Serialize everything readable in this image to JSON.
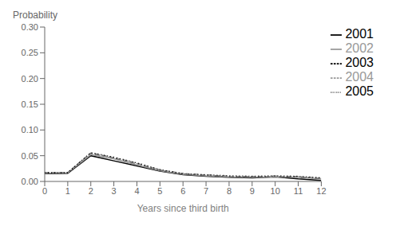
{
  "chart_data": {
    "type": "line",
    "xlabel": "Years since third birth",
    "ylabel": "Probability",
    "x": [
      0,
      1,
      2,
      3,
      4,
      5,
      6,
      7,
      8,
      9,
      10,
      11,
      12
    ],
    "series": [
      {
        "name": "2001",
        "color": "#000000",
        "line_style": "solid",
        "values": [
          0.015,
          0.016,
          0.05,
          0.04,
          0.03,
          0.02,
          0.013,
          0.01,
          0.008,
          0.007,
          0.009,
          0.005,
          0.002
        ]
      },
      {
        "name": "2002",
        "color": "#999999",
        "line_style": "solid",
        "values": [
          0.016,
          0.017,
          0.052,
          0.044,
          0.032,
          0.021,
          0.014,
          0.011,
          0.009,
          0.008,
          0.009,
          0.008,
          0.005
        ]
      },
      {
        "name": "2003",
        "color": "#000000",
        "line_style": "dashed",
        "values": [
          0.017,
          0.017,
          0.055,
          0.046,
          0.035,
          0.022,
          0.015,
          0.012,
          0.01,
          0.009,
          0.01,
          0.009,
          0.006
        ]
      },
      {
        "name": "2004",
        "color": "#999999",
        "line_style": "dashed",
        "values": [
          0.017,
          0.017,
          0.054,
          0.046,
          0.035,
          0.022,
          0.015,
          0.012,
          0.01,
          0.009,
          0.01,
          0.009,
          0.006
        ]
      },
      {
        "name": "2005",
        "color": "#000000",
        "line_style": "dotted",
        "values": [
          0.017,
          0.017,
          0.056,
          0.047,
          0.036,
          0.023,
          0.015,
          0.013,
          0.011,
          0.01,
          0.011,
          0.01,
          0.007
        ]
      }
    ],
    "xlim": [
      0,
      12
    ],
    "xticks": [
      0,
      1,
      2,
      3,
      4,
      5,
      6,
      7,
      8,
      9,
      10,
      11,
      12
    ],
    "ylim": [
      0,
      0.3
    ],
    "yticks": [
      {
        "value": 0.0,
        "label": "0.00"
      },
      0.05,
      {
        "value": 0.1,
        "label": "0.10"
      },
      0.15,
      {
        "value": 0.2,
        "label": "0.20"
      },
      0.25,
      {
        "value": 0.3,
        "label": "0.30"
      }
    ],
    "grid": false,
    "legend": "right"
  }
}
